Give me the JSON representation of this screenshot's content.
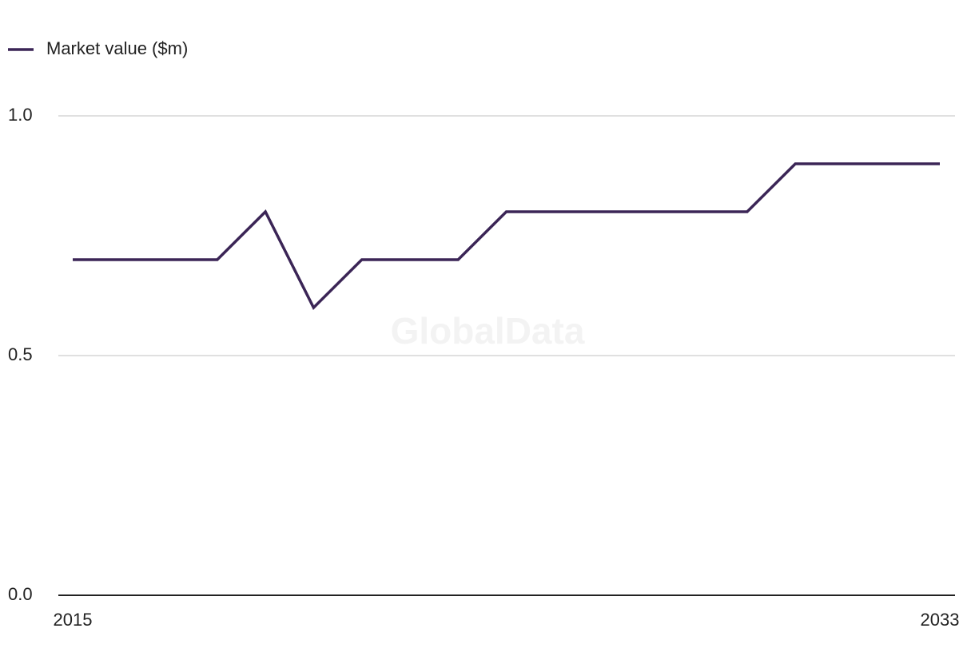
{
  "chart_data": {
    "type": "line",
    "watermark": "GlobalData",
    "x": [
      2015,
      2016,
      2017,
      2018,
      2019,
      2020,
      2021,
      2022,
      2023,
      2024,
      2025,
      2026,
      2027,
      2028,
      2029,
      2030,
      2031,
      2032,
      2033
    ],
    "series": [
      {
        "name": "Market value ($m)",
        "color": "#3b2556",
        "values": [
          0.7,
          0.7,
          0.7,
          0.7,
          0.8,
          0.6,
          0.7,
          0.7,
          0.7,
          0.8,
          0.8,
          0.8,
          0.8,
          0.8,
          0.8,
          0.9,
          0.9,
          0.9,
          0.9
        ]
      }
    ],
    "xlim": [
      2015,
      2033
    ],
    "xticks": [
      2015,
      2033
    ],
    "ylim": [
      0,
      1
    ],
    "yticks": [
      {
        "value": 0,
        "label": "0.0"
      },
      {
        "value": 0.5,
        "label": "0.5"
      },
      {
        "value": 1,
        "label": "1.0"
      }
    ],
    "grid": true,
    "legend": "top-left"
  }
}
